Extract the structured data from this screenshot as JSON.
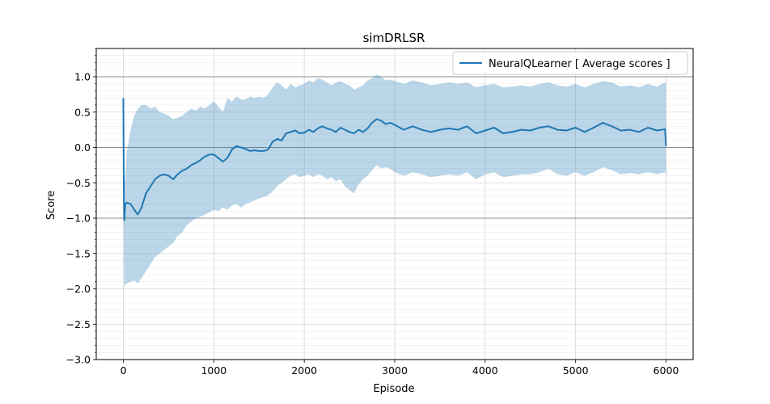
{
  "chart_data": {
    "type": "line",
    "title": "simDRLSR",
    "xlabel": "Episode",
    "ylabel": "Score",
    "xlim": [
      -300,
      6300
    ],
    "ylim": [
      -3.0,
      1.4
    ],
    "xticks": [
      0,
      1000,
      2000,
      3000,
      4000,
      5000,
      6000
    ],
    "xtick_labels": [
      "0",
      "1000",
      "2000",
      "3000",
      "4000",
      "5000",
      "6000"
    ],
    "yticks": [
      -3.0,
      -2.5,
      -2.0,
      -1.5,
      -1.0,
      -0.5,
      0.0,
      0.5,
      1.0
    ],
    "ytick_labels": [
      "−3.0",
      "−2.5",
      "−2.0",
      "−1.5",
      "−1.0",
      "−0.5",
      "0.0",
      "0.5",
      "1.0"
    ],
    "grid": true,
    "reference_lines_y": [
      -1.0,
      0.0,
      1.0
    ],
    "legend_position": "top-right",
    "series": [
      {
        "name": "NeuralQLearner [ Average scores ]",
        "color": "#1f77b4",
        "band_color": "#1f77b4",
        "x": [
          0,
          5,
          10,
          20,
          40,
          80,
          120,
          160,
          200,
          250,
          300,
          350,
          400,
          450,
          500,
          550,
          600,
          650,
          700,
          750,
          800,
          850,
          900,
          950,
          1000,
          1050,
          1100,
          1150,
          1200,
          1250,
          1300,
          1350,
          1400,
          1450,
          1500,
          1550,
          1600,
          1650,
          1700,
          1750,
          1800,
          1850,
          1900,
          1950,
          2000,
          2050,
          2100,
          2150,
          2200,
          2250,
          2300,
          2350,
          2400,
          2450,
          2500,
          2550,
          2600,
          2650,
          2700,
          2750,
          2800,
          2850,
          2900,
          2950,
          3000,
          3100,
          3200,
          3300,
          3400,
          3500,
          3600,
          3700,
          3800,
          3900,
          4000,
          4100,
          4200,
          4300,
          4400,
          4500,
          4600,
          4700,
          4800,
          4900,
          5000,
          5100,
          5200,
          5300,
          5400,
          5500,
          5600,
          5700,
          5800,
          5900,
          5990,
          6000
        ],
        "y": [
          0.7,
          -0.7,
          -1.03,
          -0.8,
          -0.78,
          -0.8,
          -0.88,
          -0.95,
          -0.85,
          -0.65,
          -0.55,
          -0.45,
          -0.4,
          -0.38,
          -0.4,
          -0.45,
          -0.38,
          -0.33,
          -0.3,
          -0.25,
          -0.22,
          -0.18,
          -0.13,
          -0.1,
          -0.1,
          -0.15,
          -0.2,
          -0.15,
          -0.03,
          0.02,
          0.0,
          -0.02,
          -0.05,
          -0.04,
          -0.05,
          -0.05,
          -0.03,
          0.08,
          0.12,
          0.1,
          0.2,
          0.22,
          0.24,
          0.2,
          0.21,
          0.25,
          0.22,
          0.27,
          0.3,
          0.27,
          0.25,
          0.22,
          0.28,
          0.25,
          0.22,
          0.2,
          0.25,
          0.22,
          0.27,
          0.35,
          0.4,
          0.38,
          0.33,
          0.35,
          0.32,
          0.25,
          0.3,
          0.25,
          0.22,
          0.25,
          0.27,
          0.25,
          0.3,
          0.2,
          0.24,
          0.28,
          0.2,
          0.22,
          0.25,
          0.24,
          0.28,
          0.3,
          0.25,
          0.24,
          0.28,
          0.22,
          0.28,
          0.35,
          0.3,
          0.24,
          0.25,
          0.22,
          0.28,
          0.24,
          0.26,
          0.02
        ],
        "band_upper": [
          0.72,
          0.1,
          -0.5,
          -0.4,
          -0.05,
          0.25,
          0.45,
          0.55,
          0.6,
          0.6,
          0.55,
          0.58,
          0.5,
          0.48,
          0.45,
          0.4,
          0.42,
          0.45,
          0.5,
          0.55,
          0.52,
          0.58,
          0.55,
          0.6,
          0.65,
          0.58,
          0.5,
          0.7,
          0.65,
          0.72,
          0.68,
          0.68,
          0.72,
          0.7,
          0.72,
          0.7,
          0.75,
          0.85,
          0.92,
          0.88,
          0.82,
          0.9,
          0.85,
          0.88,
          0.9,
          0.95,
          0.92,
          0.98,
          0.96,
          0.92,
          0.88,
          0.92,
          0.94,
          0.9,
          0.88,
          0.82,
          0.85,
          0.88,
          0.95,
          0.98,
          1.03,
          1.0,
          0.95,
          0.96,
          0.94,
          0.9,
          0.95,
          0.92,
          0.88,
          0.9,
          0.92,
          0.9,
          0.92,
          0.85,
          0.88,
          0.9,
          0.85,
          0.86,
          0.88,
          0.86,
          0.9,
          0.92,
          0.88,
          0.86,
          0.9,
          0.85,
          0.9,
          0.94,
          0.92,
          0.86,
          0.88,
          0.85,
          0.9,
          0.86,
          0.92,
          0.9
        ],
        "band_lower": [
          0.68,
          -1.5,
          -2.0,
          -1.95,
          -1.92,
          -1.9,
          -1.88,
          -1.92,
          -1.85,
          -1.75,
          -1.65,
          -1.55,
          -1.5,
          -1.45,
          -1.4,
          -1.35,
          -1.25,
          -1.2,
          -1.1,
          -1.05,
          -1.0,
          -0.98,
          -0.95,
          -0.92,
          -0.88,
          -0.9,
          -0.85,
          -0.88,
          -0.82,
          -0.8,
          -0.85,
          -0.8,
          -0.78,
          -0.75,
          -0.72,
          -0.7,
          -0.68,
          -0.62,
          -0.55,
          -0.5,
          -0.45,
          -0.4,
          -0.38,
          -0.42,
          -0.4,
          -0.38,
          -0.42,
          -0.38,
          -0.4,
          -0.45,
          -0.42,
          -0.48,
          -0.45,
          -0.55,
          -0.6,
          -0.65,
          -0.52,
          -0.45,
          -0.4,
          -0.32,
          -0.25,
          -0.3,
          -0.28,
          -0.3,
          -0.35,
          -0.4,
          -0.35,
          -0.38,
          -0.42,
          -0.4,
          -0.38,
          -0.4,
          -0.35,
          -0.45,
          -0.38,
          -0.35,
          -0.42,
          -0.4,
          -0.38,
          -0.38,
          -0.35,
          -0.3,
          -0.38,
          -0.4,
          -0.35,
          -0.4,
          -0.35,
          -0.28,
          -0.32,
          -0.38,
          -0.36,
          -0.38,
          -0.35,
          -0.38,
          -0.35,
          -0.4
        ]
      }
    ]
  }
}
